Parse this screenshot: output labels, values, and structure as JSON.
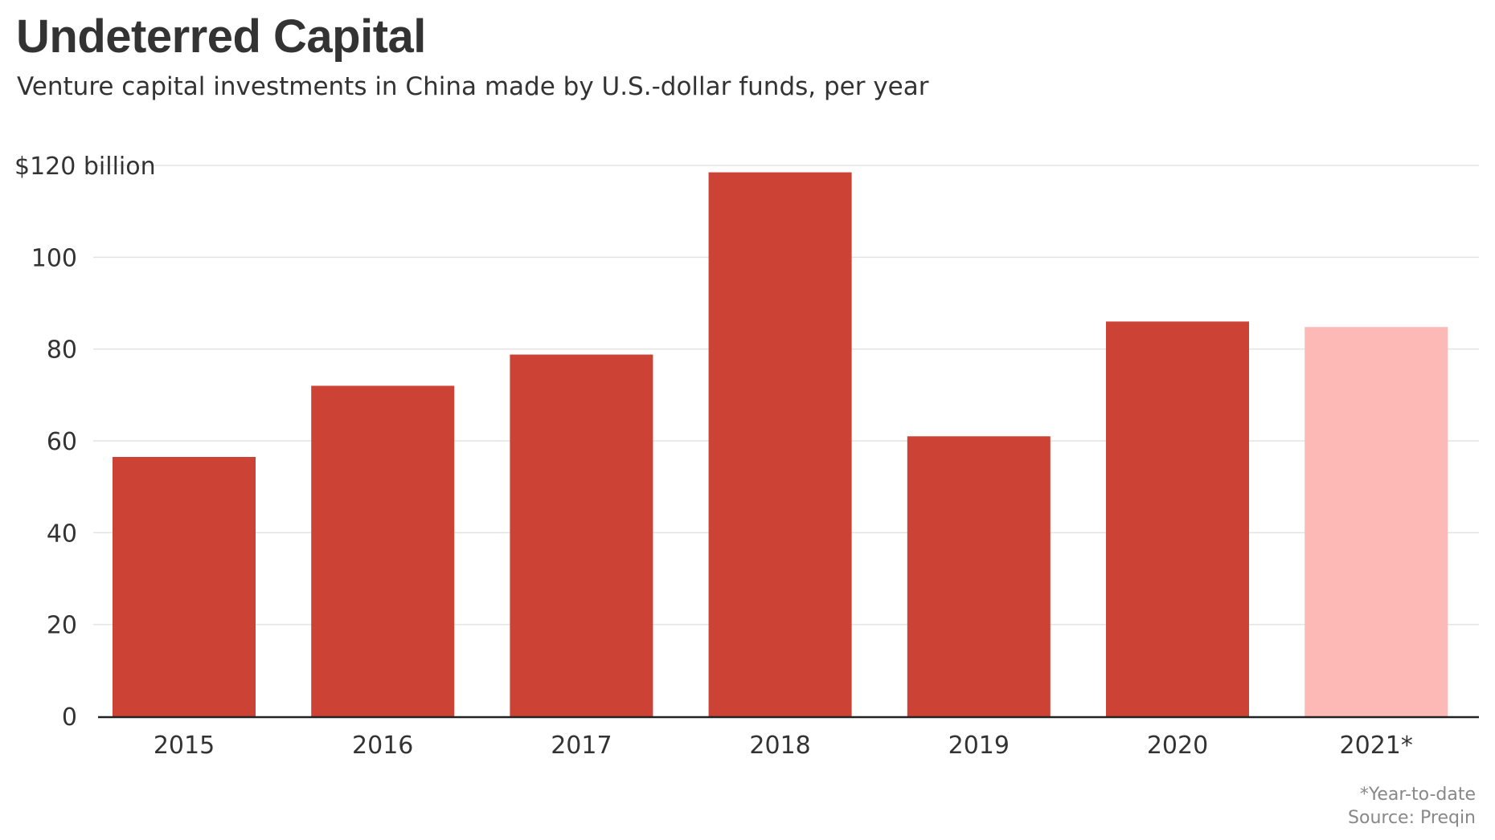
{
  "chart_data": {
    "type": "bar",
    "title": "Undeterred Capital",
    "subtitle": "Venture capital investments in China made by U.S.-dollar funds, per year",
    "categories": [
      "2015",
      "2016",
      "2017",
      "2018",
      "2019",
      "2020",
      "2021*"
    ],
    "values": [
      56.5,
      72,
      78.8,
      118.5,
      61,
      86,
      84.8
    ],
    "highlight": [
      false,
      false,
      false,
      false,
      false,
      false,
      true
    ],
    "ylim": [
      0,
      120
    ],
    "yticks": [
      0,
      20,
      40,
      60,
      80,
      100,
      120
    ],
    "ytick_labels": [
      "0",
      "20",
      "40",
      "60",
      "80",
      "100",
      "$120 billion"
    ],
    "xlabel": "",
    "ylabel": "",
    "grid": true,
    "colors": {
      "bar": "#cc4336",
      "highlight": "#fdb9b6",
      "grid": "#e3e3e3",
      "axis": "#222222"
    },
    "footnote": "*Year-to-date",
    "source": "Source: Preqin"
  }
}
